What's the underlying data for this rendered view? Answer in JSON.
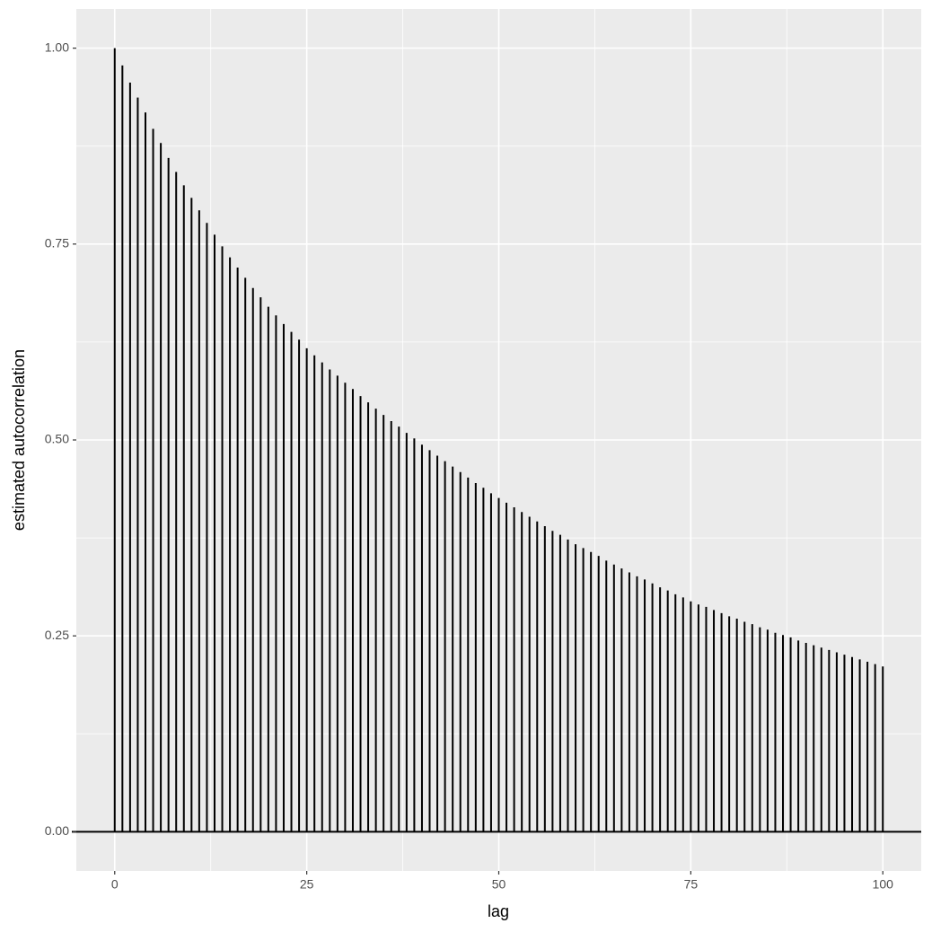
{
  "chart_data": {
    "type": "acf",
    "x_label": "lag",
    "y_label": "estimated autocorrelation",
    "x": [
      0,
      1,
      2,
      3,
      4,
      5,
      6,
      7,
      8,
      9,
      10,
      11,
      12,
      13,
      14,
      15,
      16,
      17,
      18,
      19,
      20,
      21,
      22,
      23,
      24,
      25,
      26,
      27,
      28,
      29,
      30,
      31,
      32,
      33,
      34,
      35,
      36,
      37,
      38,
      39,
      40,
      41,
      42,
      43,
      44,
      45,
      46,
      47,
      48,
      49,
      50,
      51,
      52,
      53,
      54,
      55,
      56,
      57,
      58,
      59,
      60,
      61,
      62,
      63,
      64,
      65,
      66,
      67,
      68,
      69,
      70,
      71,
      72,
      73,
      74,
      75,
      76,
      77,
      78,
      79,
      80,
      81,
      82,
      83,
      84,
      85,
      86,
      87,
      88,
      89,
      90,
      91,
      92,
      93,
      94,
      95,
      96,
      97,
      98,
      99,
      100
    ],
    "values": [
      1.0,
      0.978,
      0.956,
      0.937,
      0.918,
      0.897,
      0.879,
      0.86,
      0.842,
      0.825,
      0.809,
      0.793,
      0.777,
      0.762,
      0.747,
      0.733,
      0.72,
      0.707,
      0.694,
      0.682,
      0.67,
      0.659,
      0.648,
      0.638,
      0.628,
      0.617,
      0.608,
      0.599,
      0.59,
      0.582,
      0.573,
      0.565,
      0.556,
      0.548,
      0.54,
      0.532,
      0.524,
      0.517,
      0.509,
      0.502,
      0.494,
      0.487,
      0.48,
      0.473,
      0.466,
      0.459,
      0.452,
      0.445,
      0.439,
      0.432,
      0.426,
      0.42,
      0.414,
      0.408,
      0.402,
      0.396,
      0.39,
      0.384,
      0.379,
      0.373,
      0.367,
      0.362,
      0.357,
      0.352,
      0.346,
      0.341,
      0.336,
      0.331,
      0.326,
      0.322,
      0.317,
      0.312,
      0.308,
      0.303,
      0.299,
      0.294,
      0.29,
      0.287,
      0.283,
      0.279,
      0.275,
      0.272,
      0.268,
      0.265,
      0.261,
      0.258,
      0.254,
      0.251,
      0.248,
      0.244,
      0.241,
      0.238,
      0.235,
      0.232,
      0.229,
      0.226,
      0.223,
      0.22,
      0.217,
      0.214,
      0.211
    ],
    "color": "#000000",
    "xlim": [
      -5,
      105
    ],
    "ylim": [
      -0.05,
      1.05
    ],
    "xticks": [
      0,
      25,
      50,
      75,
      100
    ],
    "yticks": [
      {
        "value": 0,
        "label": "0.00"
      },
      {
        "value": 0.25,
        "label": "0.25"
      },
      {
        "value": 0.5,
        "label": "0.50"
      },
      {
        "value": 0.75,
        "label": "0.75"
      },
      {
        "value": 1,
        "label": "1.00"
      }
    ],
    "grid": true
  }
}
